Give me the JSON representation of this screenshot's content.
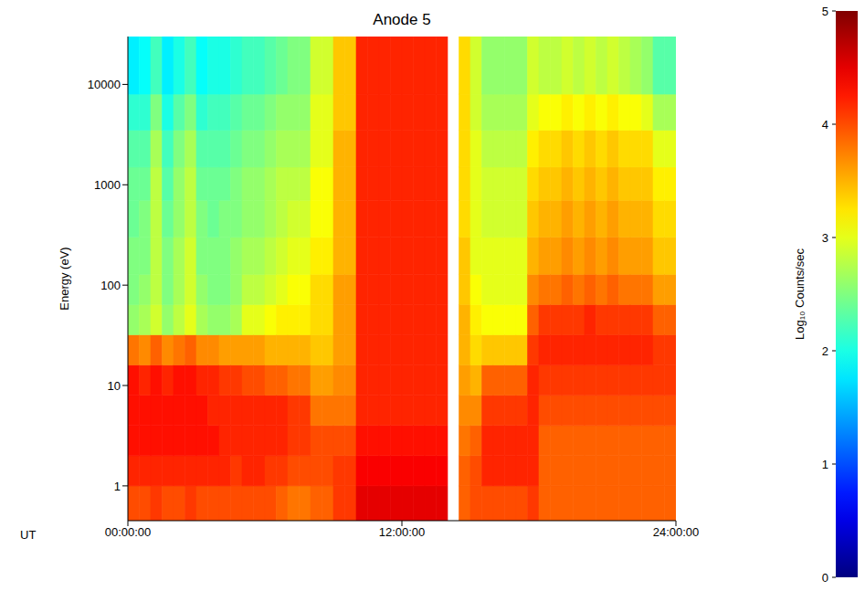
{
  "chart_data": {
    "type": "heatmap",
    "title": "Anode 5",
    "xlabel": "UT",
    "ylabel": "Energy (eV)",
    "log": "y",
    "xlim": [
      0,
      24
    ],
    "xticks": [
      {
        "value": 0,
        "label": "00:00:00"
      },
      {
        "value": 12,
        "label": "12:00:00"
      },
      {
        "value": 24,
        "label": "24:00:00"
      }
    ],
    "ylim": [
      0.45,
      30000
    ],
    "yticks": [
      1,
      10,
      100,
      1000,
      10000
    ],
    "time_edges": [
      0,
      0.5,
      1,
      1.5,
      2,
      2.5,
      3,
      3.5,
      4,
      4.5,
      5,
      5.5,
      6,
      6.5,
      7,
      7.5,
      8,
      8.5,
      9,
      9.5,
      10,
      10.5,
      11,
      11.5,
      12,
      12.5,
      13,
      13.5,
      14,
      14.5,
      15,
      15.5,
      16,
      16.5,
      17,
      17.5,
      18,
      18.5,
      19,
      19.5,
      20,
      20.5,
      21,
      21.5,
      22,
      22.5,
      23,
      23.5,
      24
    ],
    "energy_edges": [
      0.45,
      1,
      2,
      4,
      8,
      16,
      32,
      64,
      128,
      300,
      700,
      1500,
      3500,
      8000,
      30000
    ],
    "cells": [
      [
        4.0,
        4.2,
        4.3,
        4.3,
        4.3,
        3.8,
        2.6,
        2.5,
        2.5,
        2.4,
        2.4,
        2.3,
        2.1,
        1.8
      ],
      [
        4.0,
        4.2,
        4.3,
        4.3,
        4.2,
        3.7,
        2.7,
        2.6,
        2.5,
        2.5,
        2.4,
        2.3,
        2.1,
        1.9
      ],
      [
        4.1,
        4.2,
        4.3,
        4.3,
        4.3,
        3.9,
        2.9,
        2.8,
        2.8,
        2.8,
        2.8,
        2.7,
        2.5,
        2.2
      ],
      [
        4.0,
        4.2,
        4.3,
        4.3,
        4.2,
        3.7,
        2.6,
        2.5,
        2.5,
        2.4,
        2.3,
        2.2,
        2.0,
        1.8
      ],
      [
        4.0,
        4.2,
        4.3,
        4.3,
        4.3,
        3.8,
        2.8,
        2.7,
        2.7,
        2.6,
        2.6,
        2.5,
        2.3,
        2.0
      ],
      [
        4.1,
        4.2,
        4.3,
        4.3,
        4.3,
        3.9,
        3.0,
        2.9,
        2.9,
        2.8,
        2.8,
        2.7,
        2.5,
        2.2
      ],
      [
        4.0,
        4.2,
        4.3,
        4.3,
        4.2,
        3.7,
        2.7,
        2.6,
        2.5,
        2.5,
        2.4,
        2.3,
        2.1,
        1.9
      ],
      [
        4.0,
        4.2,
        4.3,
        4.2,
        4.2,
        3.7,
        2.6,
        2.5,
        2.5,
        2.4,
        2.4,
        2.3,
        2.2,
        2.0
      ],
      [
        4.0,
        4.2,
        4.2,
        4.2,
        4.1,
        3.6,
        2.6,
        2.5,
        2.5,
        2.5,
        2.4,
        2.3,
        2.2,
        2.0
      ],
      [
        4.0,
        4.1,
        4.2,
        4.2,
        4.1,
        3.6,
        2.7,
        2.6,
        2.6,
        2.5,
        2.5,
        2.4,
        2.3,
        2.1
      ],
      [
        4.0,
        4.2,
        4.2,
        4.2,
        4.0,
        3.6,
        3.0,
        2.8,
        2.7,
        2.6,
        2.6,
        2.5,
        2.4,
        2.2
      ],
      [
        4.0,
        4.2,
        4.2,
        4.2,
        4.0,
        3.6,
        3.0,
        2.8,
        2.7,
        2.6,
        2.6,
        2.5,
        2.4,
        2.2
      ],
      [
        4.0,
        4.1,
        4.2,
        4.2,
        3.9,
        3.5,
        3.1,
        2.9,
        2.8,
        2.7,
        2.7,
        2.6,
        2.5,
        2.3
      ],
      [
        3.9,
        4.1,
        4.2,
        4.2,
        3.9,
        3.5,
        3.2,
        3.0,
        2.9,
        2.8,
        2.8,
        2.7,
        2.6,
        2.4
      ],
      [
        3.8,
        4.0,
        4.1,
        4.1,
        3.8,
        3.5,
        3.2,
        3.1,
        3.0,
        2.9,
        2.8,
        2.7,
        2.6,
        2.5
      ],
      [
        3.8,
        4.0,
        4.1,
        4.1,
        3.8,
        3.5,
        3.2,
        3.1,
        3.0,
        2.9,
        2.8,
        2.7,
        2.6,
        2.5
      ],
      [
        3.9,
        4.0,
        4.0,
        3.8,
        3.6,
        3.4,
        3.3,
        3.3,
        3.2,
        3.1,
        3.1,
        3.0,
        3.0,
        2.9
      ],
      [
        3.9,
        4.0,
        4.0,
        3.8,
        3.6,
        3.4,
        3.3,
        3.3,
        3.2,
        3.1,
        3.1,
        3.0,
        3.0,
        2.9
      ],
      [
        4.1,
        4.1,
        4.0,
        3.8,
        3.7,
        3.6,
        3.6,
        3.6,
        3.5,
        3.5,
        3.5,
        3.5,
        3.4,
        3.4
      ],
      [
        4.1,
        4.1,
        4.0,
        3.8,
        3.7,
        3.6,
        3.6,
        3.6,
        3.5,
        3.5,
        3.5,
        3.5,
        3.4,
        3.4
      ],
      [
        4.5,
        4.4,
        4.3,
        4.2,
        4.2,
        4.2,
        4.2,
        4.2,
        4.2,
        4.2,
        4.2,
        4.2,
        4.2,
        4.2
      ],
      [
        4.5,
        4.4,
        4.3,
        4.2,
        4.2,
        4.2,
        4.2,
        4.2,
        4.2,
        4.2,
        4.2,
        4.2,
        4.2,
        4.2
      ],
      [
        4.5,
        4.4,
        4.3,
        4.2,
        4.2,
        4.2,
        4.2,
        4.2,
        4.2,
        4.2,
        4.2,
        4.2,
        4.2,
        4.2
      ],
      [
        4.5,
        4.4,
        4.3,
        4.2,
        4.2,
        4.2,
        4.2,
        4.2,
        4.2,
        4.2,
        4.2,
        4.2,
        4.2,
        4.2
      ],
      [
        4.5,
        4.4,
        4.3,
        4.2,
        4.2,
        4.2,
        4.2,
        4.2,
        4.2,
        4.2,
        4.2,
        4.2,
        4.2,
        4.2
      ],
      [
        4.5,
        4.4,
        4.3,
        4.2,
        4.2,
        4.2,
        4.2,
        4.2,
        4.2,
        4.2,
        4.2,
        4.2,
        4.2,
        4.2
      ],
      [
        4.5,
        4.4,
        4.3,
        4.2,
        4.2,
        4.2,
        4.2,
        4.2,
        4.2,
        4.2,
        4.2,
        4.2,
        4.2,
        4.2
      ],
      [
        4.5,
        4.4,
        4.3,
        4.2,
        4.2,
        4.2,
        4.2,
        4.2,
        4.2,
        4.2,
        4.2,
        4.2,
        4.2,
        4.2
      ],
      null,
      [
        3.9,
        3.9,
        3.8,
        3.7,
        3.6,
        3.5,
        3.5,
        3.4,
        3.4,
        3.3,
        3.3,
        3.3,
        3.3,
        3.3
      ],
      [
        4.0,
        4.0,
        3.9,
        3.7,
        3.5,
        3.3,
        3.2,
        3.1,
        3.0,
        3.0,
        3.0,
        3.0,
        2.9,
        2.9
      ],
      [
        4.0,
        4.2,
        4.2,
        4.1,
        3.9,
        3.4,
        3.1,
        3.0,
        3.0,
        2.9,
        2.9,
        2.8,
        2.7,
        2.6
      ],
      [
        4.0,
        4.2,
        4.2,
        4.1,
        3.9,
        3.4,
        3.1,
        3.0,
        3.0,
        2.9,
        2.9,
        2.8,
        2.7,
        2.6
      ],
      [
        4.0,
        4.2,
        4.2,
        4.1,
        3.9,
        3.4,
        3.1,
        3.0,
        3.0,
        2.9,
        2.9,
        2.8,
        2.7,
        2.6
      ],
      [
        4.0,
        4.2,
        4.2,
        4.1,
        3.9,
        3.4,
        3.1,
        3.0,
        3.0,
        2.9,
        2.9,
        2.8,
        2.7,
        2.6
      ],
      [
        4.1,
        4.2,
        4.2,
        4.2,
        4.2,
        4.1,
        3.9,
        3.7,
        3.5,
        3.4,
        3.3,
        3.2,
        3.0,
        2.9
      ],
      [
        3.9,
        3.9,
        3.9,
        4.0,
        4.1,
        4.2,
        4.1,
        3.8,
        3.6,
        3.5,
        3.4,
        3.3,
        3.1,
        2.8
      ],
      [
        3.9,
        3.9,
        3.9,
        4.0,
        4.1,
        4.2,
        4.1,
        3.8,
        3.6,
        3.5,
        3.4,
        3.3,
        3.1,
        2.8
      ],
      [
        3.9,
        3.9,
        3.9,
        4.0,
        4.1,
        4.2,
        4.1,
        3.9,
        3.7,
        3.6,
        3.5,
        3.4,
        3.2,
        2.9
      ],
      [
        3.9,
        3.9,
        3.9,
        4.0,
        4.1,
        4.2,
        4.1,
        3.8,
        3.6,
        3.5,
        3.4,
        3.3,
        3.1,
        2.8
      ],
      [
        3.9,
        3.9,
        3.9,
        4.0,
        4.1,
        4.2,
        4.2,
        3.9,
        3.7,
        3.6,
        3.5,
        3.4,
        3.2,
        2.9
      ],
      [
        3.9,
        3.9,
        3.9,
        4.0,
        4.1,
        4.2,
        4.1,
        3.8,
        3.6,
        3.5,
        3.4,
        3.3,
        3.1,
        2.8
      ],
      [
        3.9,
        3.9,
        3.9,
        4.0,
        4.1,
        4.2,
        4.1,
        3.9,
        3.7,
        3.6,
        3.5,
        3.4,
        3.2,
        2.9
      ],
      [
        3.9,
        3.9,
        3.9,
        4.0,
        4.1,
        4.2,
        4.1,
        3.8,
        3.6,
        3.5,
        3.4,
        3.3,
        3.1,
        2.8
      ],
      [
        3.9,
        3.9,
        3.9,
        4.0,
        4.1,
        4.2,
        4.1,
        3.8,
        3.6,
        3.5,
        3.4,
        3.3,
        3.1,
        2.7
      ],
      [
        3.9,
        3.9,
        3.9,
        4.0,
        4.1,
        4.2,
        4.1,
        3.8,
        3.6,
        3.5,
        3.4,
        3.3,
        3.0,
        2.6
      ],
      [
        3.9,
        3.9,
        3.9,
        4.0,
        4.1,
        4.1,
        3.9,
        3.6,
        3.4,
        3.3,
        3.2,
        3.0,
        2.7,
        2.3
      ],
      [
        3.9,
        3.9,
        3.9,
        4.0,
        4.1,
        4.1,
        3.9,
        3.6,
        3.4,
        3.3,
        3.2,
        3.0,
        2.7,
        2.3
      ]
    ],
    "colorbar": {
      "label": "Log₁₀ Counts/sec",
      "range": [
        0,
        5
      ],
      "ticks": [
        0,
        1,
        2,
        3,
        4,
        5
      ]
    }
  }
}
